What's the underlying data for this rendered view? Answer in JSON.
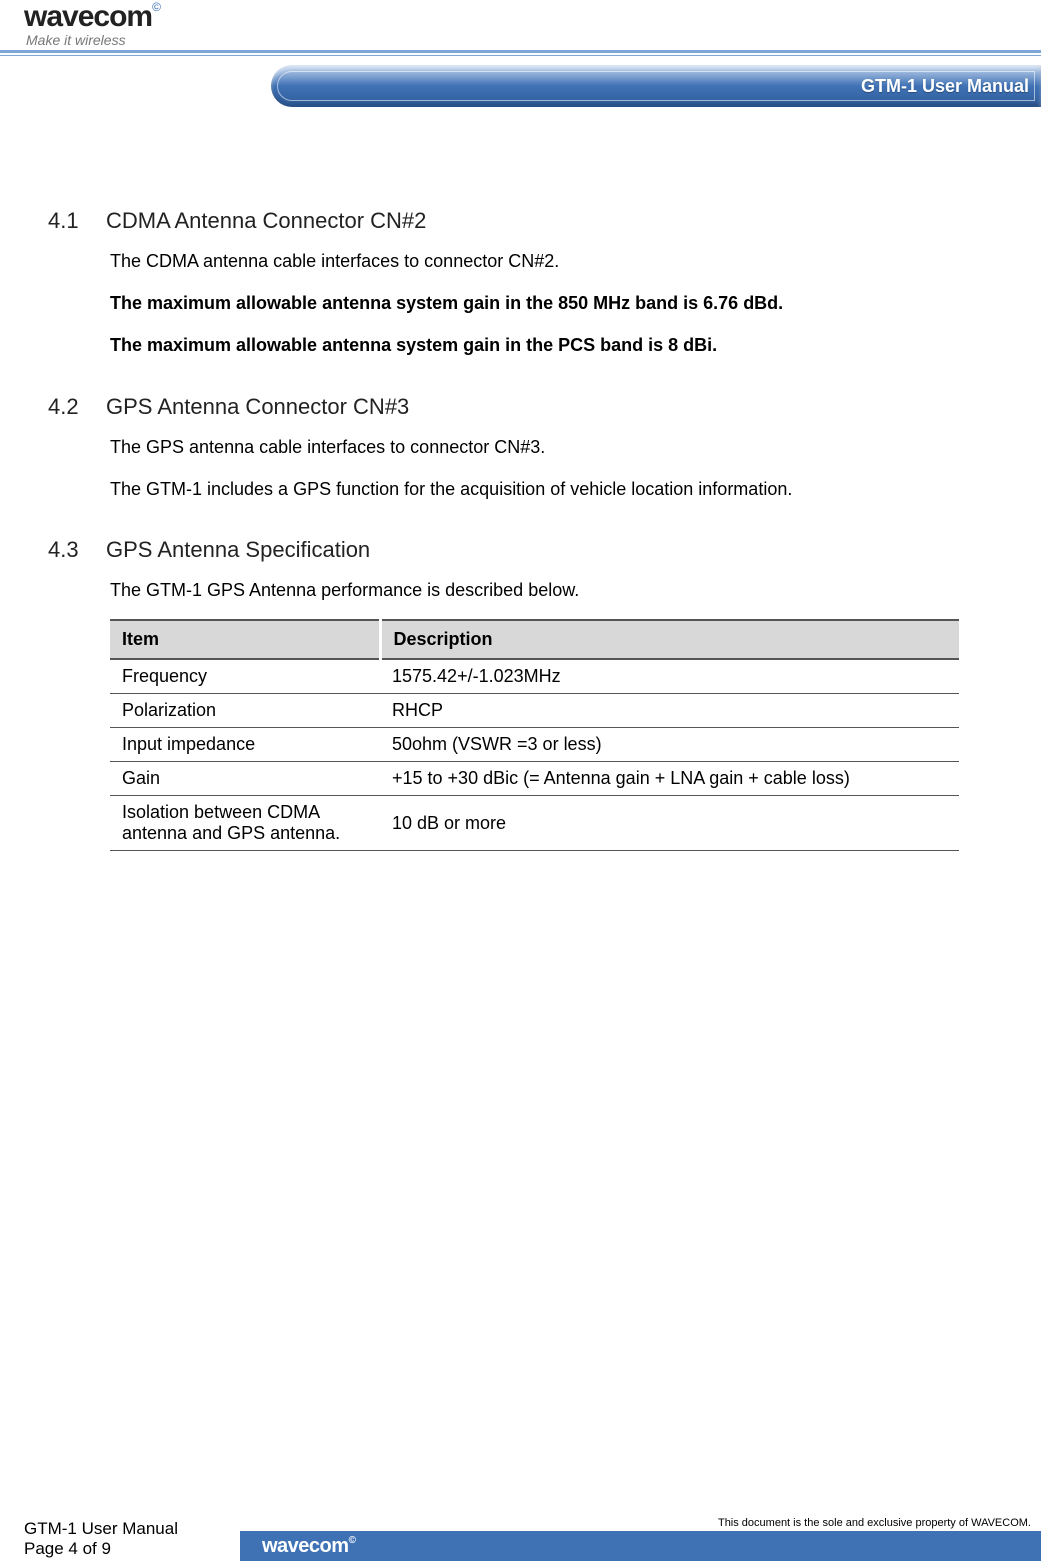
{
  "header": {
    "logo_text": "wavecom",
    "logo_sup": "©",
    "tagline": "Make it wireless",
    "banner_title": "GTM-1 User Manual"
  },
  "sections": {
    "s41": {
      "num": "4.1",
      "title": "CDMA Antenna Connector CN#2",
      "p1": "The CDMA antenna cable interfaces to connector CN#2.",
      "p2": "The maximum allowable antenna system gain in the 850 MHz band is 6.76 dBd.",
      "p3": "The maximum allowable antenna system gain in the PCS band is 8 dBi."
    },
    "s42": {
      "num": "4.2",
      "title": "GPS Antenna Connector CN#3",
      "p1": "The GPS antenna cable interfaces to connector CN#3.",
      "p2": "The GTM-1 includes a GPS function for the acquisition of vehicle location information."
    },
    "s43": {
      "num": "4.3",
      "title": "GPS Antenna Specification",
      "p1": "The GTM-1 GPS Antenna performance is described below."
    }
  },
  "table": {
    "type": "table",
    "header_bg": "#d8d8d8",
    "border_color": "#555555",
    "columns": [
      "Item",
      "Description"
    ],
    "rows": [
      {
        "item": "Frequency",
        "desc": "1575.42+/-1.023MHz"
      },
      {
        "item": "Polarization",
        "desc": "RHCP"
      },
      {
        "item": "Input impedance",
        "desc": "50ohm (VSWR =3 or less)"
      },
      {
        "item": "Gain",
        "desc": "+15 to +30 dBic (= Antenna gain + LNA gain + cable loss)"
      },
      {
        "item": "Isolation between CDMA antenna and GPS antenna.",
        "desc": "10 dB or more"
      }
    ]
  },
  "footer": {
    "manual": "GTM-1 User Manual",
    "page": "Page 4 of 9",
    "right": "This document is the sole and exclusive property of WAVECOM.",
    "bar_logo": "wavecom",
    "bar_sup": "©"
  },
  "colors": {
    "banner_grad_top": "#c8d9ef",
    "banner_grad_mid": "#3f72b5",
    "banner_grad_bot": "#2f5c9a",
    "header_line": "#7da6d9",
    "footer_bar": "#3f72b5"
  }
}
